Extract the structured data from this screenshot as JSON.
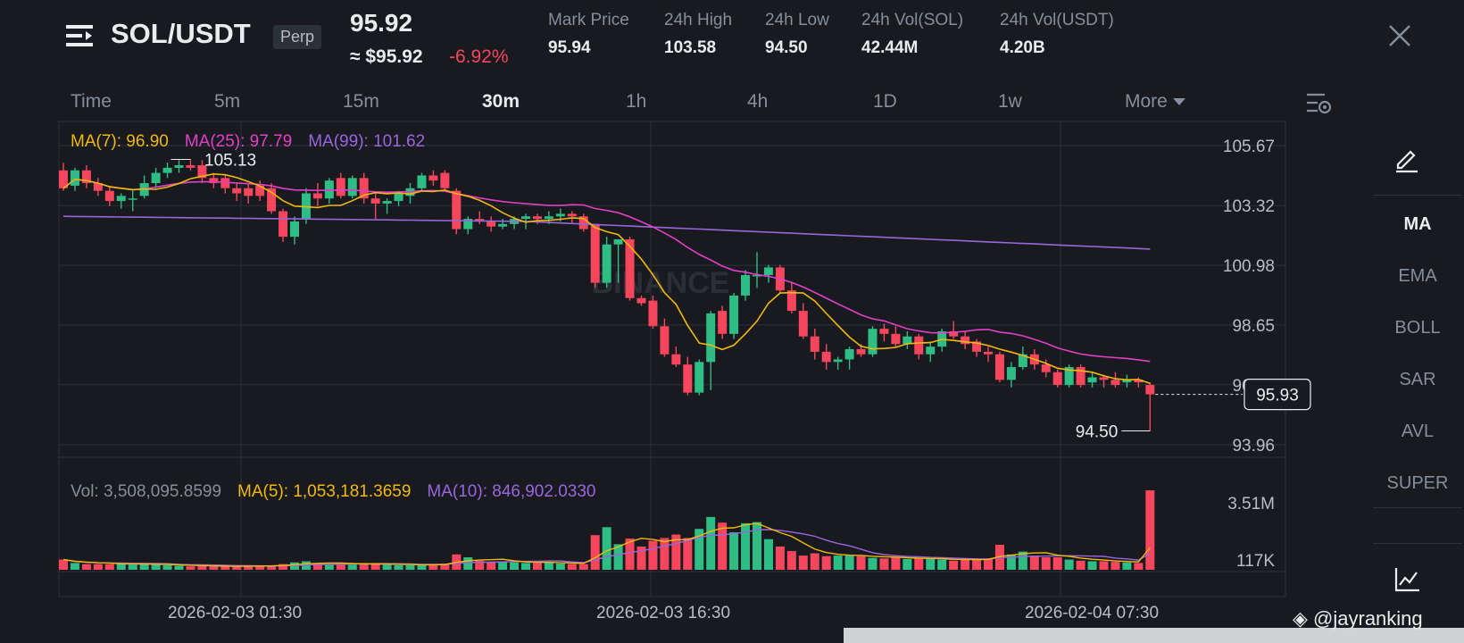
{
  "header": {
    "pair": "SOL/USDT",
    "contract_type": "Perp",
    "last_price": "95.92",
    "approx_price": "≈ $95.92",
    "change_pct": "-6.92%",
    "stats": [
      {
        "label": "Mark Price",
        "value": "95.94"
      },
      {
        "label": "24h High",
        "value": "103.58"
      },
      {
        "label": "24h Low",
        "value": "94.50"
      },
      {
        "label": "24h Vol(SOL)",
        "value": "42.44M"
      },
      {
        "label": "24h Vol(USDT)",
        "value": "4.20B"
      }
    ]
  },
  "intervals": [
    "Time",
    "5m",
    "15m",
    "30m",
    "1h",
    "4h",
    "1D",
    "1w"
  ],
  "active_interval": "30m",
  "more_label": "More",
  "ma_legend": {
    "ma7": "MA(7): 96.90",
    "ma25": "MA(25): 97.79",
    "ma99": "MA(99): 101.62"
  },
  "vol_legend": {
    "vol": "Vol: 3,508,095.8599",
    "ma5": "MA(5): 1,053,181.3659",
    "ma10": "MA(10): 846,902.0330"
  },
  "price_axis": [
    "105.67",
    "103.32",
    "100.98",
    "98.65",
    "96.31",
    "93.96"
  ],
  "volume_axis": [
    "3.51M",
    "117K"
  ],
  "current_price_tag": "95.93",
  "high_marker": "105.13",
  "low_marker": "94.50",
  "indicators": [
    "MA",
    "EMA",
    "BOLL",
    "SAR",
    "AVL",
    "SUPER"
  ],
  "active_indicator": "MA",
  "date_labels": [
    "2026-02-03 01:30",
    "2026-02-03 16:30",
    "2026-02-04 07:30"
  ],
  "watermark": "BINANCE",
  "credit": "@jayranking",
  "colors": {
    "up": "#2ebd85",
    "down": "#f6465d",
    "ma7": "#f0b90b",
    "ma25": "#e040c8",
    "ma99": "#9966dd",
    "vol_ma5": "#f0b90b",
    "vol_ma10": "#9966dd",
    "background": "#181a20",
    "grid": "#2b3139"
  },
  "chart_data": {
    "type": "candlestick",
    "interval": "30m",
    "y_range": [
      93.96,
      105.67
    ],
    "candles": [
      [
        104.7,
        105.0,
        103.9,
        104.0
      ],
      [
        104.1,
        104.8,
        103.9,
        104.7
      ],
      [
        104.7,
        104.9,
        104.0,
        104.2
      ],
      [
        104.2,
        104.4,
        103.7,
        103.9
      ],
      [
        103.9,
        104.1,
        103.3,
        103.5
      ],
      [
        103.5,
        103.8,
        103.2,
        103.7
      ],
      [
        103.6,
        103.9,
        103.1,
        103.6
      ],
      [
        103.7,
        104.5,
        103.6,
        104.2
      ],
      [
        104.2,
        104.8,
        104.0,
        104.6
      ],
      [
        104.6,
        105.0,
        104.4,
        104.8
      ],
      [
        104.8,
        105.1,
        104.6,
        104.9
      ],
      [
        104.9,
        105.13,
        104.7,
        104.8
      ],
      [
        104.9,
        105.1,
        104.2,
        104.4
      ],
      [
        104.4,
        104.6,
        104.0,
        104.2
      ],
      [
        104.4,
        104.5,
        103.8,
        104.0
      ],
      [
        104.0,
        104.2,
        103.5,
        103.8
      ],
      [
        104.0,
        104.2,
        103.4,
        103.7
      ],
      [
        104.1,
        104.3,
        103.5,
        103.7
      ],
      [
        104.0,
        104.2,
        103.0,
        103.1
      ],
      [
        103.1,
        103.2,
        101.9,
        102.1
      ],
      [
        102.1,
        102.9,
        101.8,
        102.7
      ],
      [
        102.8,
        104.0,
        102.6,
        103.8
      ],
      [
        103.8,
        104.2,
        103.3,
        103.6
      ],
      [
        103.6,
        104.4,
        103.4,
        104.3
      ],
      [
        104.4,
        104.6,
        103.6,
        103.7
      ],
      [
        103.7,
        104.5,
        103.6,
        104.4
      ],
      [
        104.4,
        104.6,
        103.4,
        103.6
      ],
      [
        103.6,
        103.8,
        102.8,
        103.4
      ],
      [
        103.4,
        103.6,
        103.0,
        103.5
      ],
      [
        103.5,
        103.9,
        103.3,
        103.8
      ],
      [
        103.7,
        104.2,
        103.4,
        104.0
      ],
      [
        104.0,
        104.6,
        103.9,
        104.5
      ],
      [
        104.5,
        104.7,
        104.1,
        104.3
      ],
      [
        104.6,
        104.7,
        103.9,
        104.0
      ],
      [
        103.9,
        104.0,
        102.2,
        102.4
      ],
      [
        102.4,
        102.9,
        102.2,
        102.8
      ],
      [
        102.8,
        103.1,
        102.6,
        102.7
      ],
      [
        102.7,
        102.9,
        102.3,
        102.5
      ],
      [
        102.5,
        102.8,
        102.4,
        102.6
      ],
      [
        102.6,
        102.9,
        102.4,
        102.8
      ],
      [
        102.8,
        103.0,
        102.4,
        102.9
      ],
      [
        102.9,
        103.0,
        102.6,
        102.8
      ],
      [
        102.8,
        103.1,
        102.6,
        102.9
      ],
      [
        102.9,
        103.2,
        102.7,
        103.0
      ],
      [
        103.0,
        103.1,
        102.6,
        102.9
      ],
      [
        102.9,
        103.0,
        102.3,
        102.4
      ],
      [
        102.6,
        102.6,
        100.1,
        100.3
      ],
      [
        100.3,
        102.1,
        100.1,
        101.8
      ],
      [
        101.8,
        102.0,
        100.3,
        102.0
      ],
      [
        102.0,
        102.1,
        99.6,
        99.7
      ],
      [
        99.7,
        99.8,
        99.4,
        99.5
      ],
      [
        99.6,
        99.8,
        98.5,
        98.6
      ],
      [
        98.6,
        98.9,
        97.4,
        97.5
      ],
      [
        97.5,
        97.8,
        97.0,
        97.1
      ],
      [
        97.1,
        97.4,
        95.9,
        96.0
      ],
      [
        96.0,
        97.3,
        95.9,
        97.2
      ],
      [
        97.2,
        99.2,
        96.1,
        99.1
      ],
      [
        99.2,
        99.4,
        98.1,
        98.3
      ],
      [
        98.3,
        99.9,
        98.1,
        99.8
      ],
      [
        99.8,
        100.8,
        99.6,
        100.6
      ],
      [
        100.6,
        101.5,
        100.1,
        100.6
      ],
      [
        100.6,
        101.0,
        100.3,
        100.9
      ],
      [
        100.9,
        101.0,
        99.9,
        100.0
      ],
      [
        100.0,
        100.3,
        99.1,
        99.2
      ],
      [
        99.2,
        99.5,
        98.1,
        98.2
      ],
      [
        98.2,
        98.5,
        97.3,
        97.6
      ],
      [
        97.6,
        97.9,
        96.9,
        97.2
      ],
      [
        97.2,
        97.4,
        96.9,
        97.3
      ],
      [
        97.3,
        97.8,
        96.9,
        97.7
      ],
      [
        97.7,
        97.9,
        97.4,
        97.5
      ],
      [
        97.5,
        98.6,
        97.4,
        98.5
      ],
      [
        98.5,
        98.7,
        98.0,
        98.3
      ],
      [
        98.3,
        98.6,
        97.8,
        97.9
      ],
      [
        97.9,
        98.4,
        97.7,
        98.2
      ],
      [
        98.2,
        98.3,
        97.3,
        97.5
      ],
      [
        97.5,
        98.0,
        97.2,
        97.8
      ],
      [
        97.8,
        98.5,
        97.6,
        98.4
      ],
      [
        98.4,
        98.8,
        98.1,
        98.2
      ],
      [
        98.2,
        98.4,
        97.7,
        97.9
      ],
      [
        98.0,
        98.1,
        97.4,
        97.6
      ],
      [
        97.6,
        97.8,
        97.2,
        97.5
      ],
      [
        97.5,
        97.6,
        96.4,
        96.5
      ],
      [
        96.5,
        97.2,
        96.2,
        97.0
      ],
      [
        97.0,
        97.8,
        96.9,
        97.5
      ],
      [
        97.5,
        97.7,
        96.9,
        97.1
      ],
      [
        97.1,
        97.3,
        96.6,
        96.8
      ],
      [
        96.8,
        96.9,
        96.2,
        96.3
      ],
      [
        96.3,
        97.1,
        96.2,
        97.0
      ],
      [
        97.0,
        97.1,
        96.2,
        96.3
      ],
      [
        96.4,
        96.8,
        96.2,
        96.6
      ],
      [
        96.6,
        96.7,
        96.2,
        96.5
      ],
      [
        96.5,
        96.8,
        96.2,
        96.3
      ],
      [
        96.4,
        96.7,
        96.2,
        96.5
      ],
      [
        96.5,
        96.6,
        96.2,
        96.4
      ],
      [
        96.3,
        96.4,
        94.5,
        95.93
      ]
    ],
    "volume": [
      0.18,
      0.12,
      0.1,
      0.1,
      0.1,
      0.11,
      0.09,
      0.1,
      0.09,
      0.08,
      0.07,
      0.06,
      0.07,
      0.06,
      0.06,
      0.06,
      0.07,
      0.07,
      0.08,
      0.1,
      0.13,
      0.15,
      0.11,
      0.1,
      0.1,
      0.09,
      0.12,
      0.1,
      0.09,
      0.08,
      0.08,
      0.09,
      0.1,
      0.11,
      0.27,
      0.22,
      0.16,
      0.13,
      0.15,
      0.13,
      0.12,
      0.12,
      0.14,
      0.11,
      0.1,
      0.1,
      0.61,
      0.75,
      0.45,
      0.55,
      0.41,
      0.51,
      0.56,
      0.62,
      0.56,
      0.72,
      0.93,
      0.83,
      0.66,
      0.82,
      0.84,
      0.54,
      0.41,
      0.33,
      0.25,
      0.29,
      0.24,
      0.25,
      0.25,
      0.24,
      0.21,
      0.2,
      0.22,
      0.19,
      0.2,
      0.19,
      0.18,
      0.16,
      0.18,
      0.19,
      0.2,
      0.44,
      0.27,
      0.32,
      0.25,
      0.22,
      0.22,
      0.18,
      0.16,
      0.15,
      0.15,
      0.14,
      0.13,
      0.12,
      1.4
    ]
  }
}
